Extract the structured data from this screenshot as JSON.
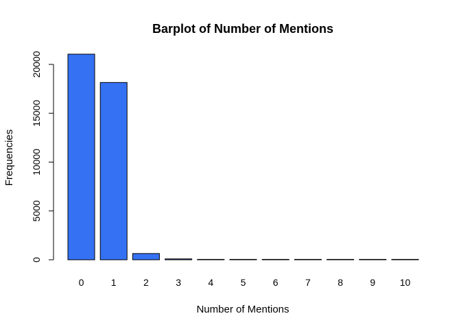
{
  "chart_data": {
    "type": "bar",
    "title": "Barplot of Number of Mentions",
    "xlabel": "Number of Mentions",
    "ylabel": "Frequencies",
    "categories": [
      "0",
      "1",
      "2",
      "3",
      "4",
      "5",
      "6",
      "7",
      "8",
      "9",
      "10"
    ],
    "values": [
      21050,
      18150,
      640,
      90,
      20,
      8,
      4,
      2,
      1,
      1,
      1
    ],
    "ylim": [
      0,
      21050
    ],
    "yticks": [
      "0",
      "5000",
      "10000",
      "15000",
      "20000"
    ],
    "grid": false,
    "legend": "none",
    "bar_color": "#3571F3"
  }
}
